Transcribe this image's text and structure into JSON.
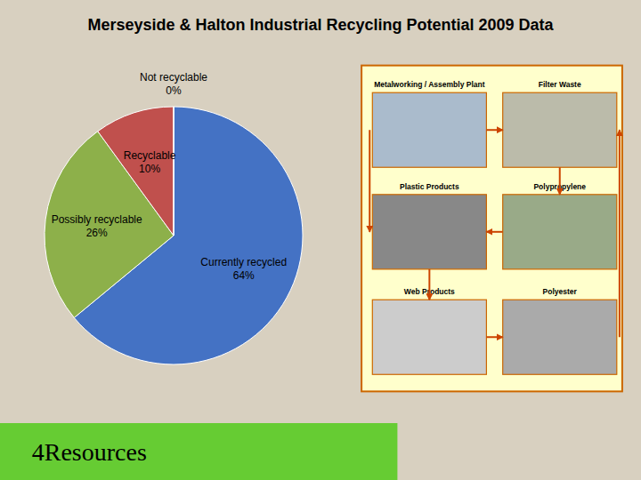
{
  "chart_data": {
    "type": "pie",
    "title": "Merseyside & Halton Industrial Recycling Potential 2009 Data",
    "categories": [
      "Currently recycled",
      "Possibly recyclable",
      "Recyclable",
      "Not recyclable"
    ],
    "values": [
      64,
      26,
      10,
      0
    ],
    "value_labels": [
      "64%",
      "26%",
      "10%",
      "0%"
    ],
    "data_labels": true,
    "colors": [
      "#4472C4",
      "#8DB04A",
      "#C0504D",
      "#7B6B99"
    ],
    "annotations": [
      "Metalworking / Assembly Plant",
      "Filter Waste",
      "Plastic Products",
      "Polypropylene",
      "Web Products",
      "Polyester",
      "4Resources"
    ]
  }
}
